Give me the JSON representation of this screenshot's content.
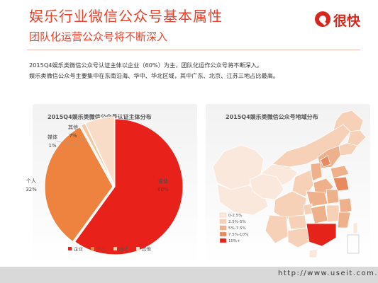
{
  "header": {
    "title": "娱乐行业微信公众号基本属性",
    "subtitle": "团队化运营公众号将不断深入",
    "logo_text": "很快"
  },
  "body": {
    "line1": "2015Q4娱乐类微信公众号认证主体以企业（60%）为主，团队化运作公众号将不断深入。",
    "line2": "娱乐类微信公众号主要集中在东南沿海、华中、华北区域，其中广东、北京、江苏三地占比最高。"
  },
  "footer": {
    "url": "http://www.useit.com.cn"
  },
  "colors": {
    "accent": "#e8402a",
    "pie": [
      "#e8221a",
      "#ee8340",
      "#f2c9a0",
      "#f8dcc8"
    ]
  },
  "chart_data": [
    {
      "type": "pie",
      "title": "2015Q4娱乐类微信公众号认证主体分布",
      "slices": [
        {
          "name": "企业",
          "value": 60,
          "label": "60%"
        },
        {
          "name": "个人",
          "value": 32,
          "label": "32%"
        },
        {
          "name": "媒体",
          "value": 1,
          "label": "1%"
        },
        {
          "name": "其他",
          "value": 7,
          "label": "7%"
        }
      ],
      "legend": [
        "企业",
        "个人",
        "媒体",
        "其他"
      ],
      "legend_position": "bottom"
    },
    {
      "type": "heatmap",
      "title": "2015Q4娱乐类微信公众号地域分布",
      "legend": [
        "0-2.5%",
        "2.5%-5%",
        "5%-7.5%",
        "7.5%-10%",
        "10%+"
      ],
      "legend_colors": [
        "#fbe8dc",
        "#f6d0b7",
        "#efb08c",
        "#e98a5e",
        "#e6231b"
      ],
      "legend_position": "bottom-left"
    }
  ]
}
